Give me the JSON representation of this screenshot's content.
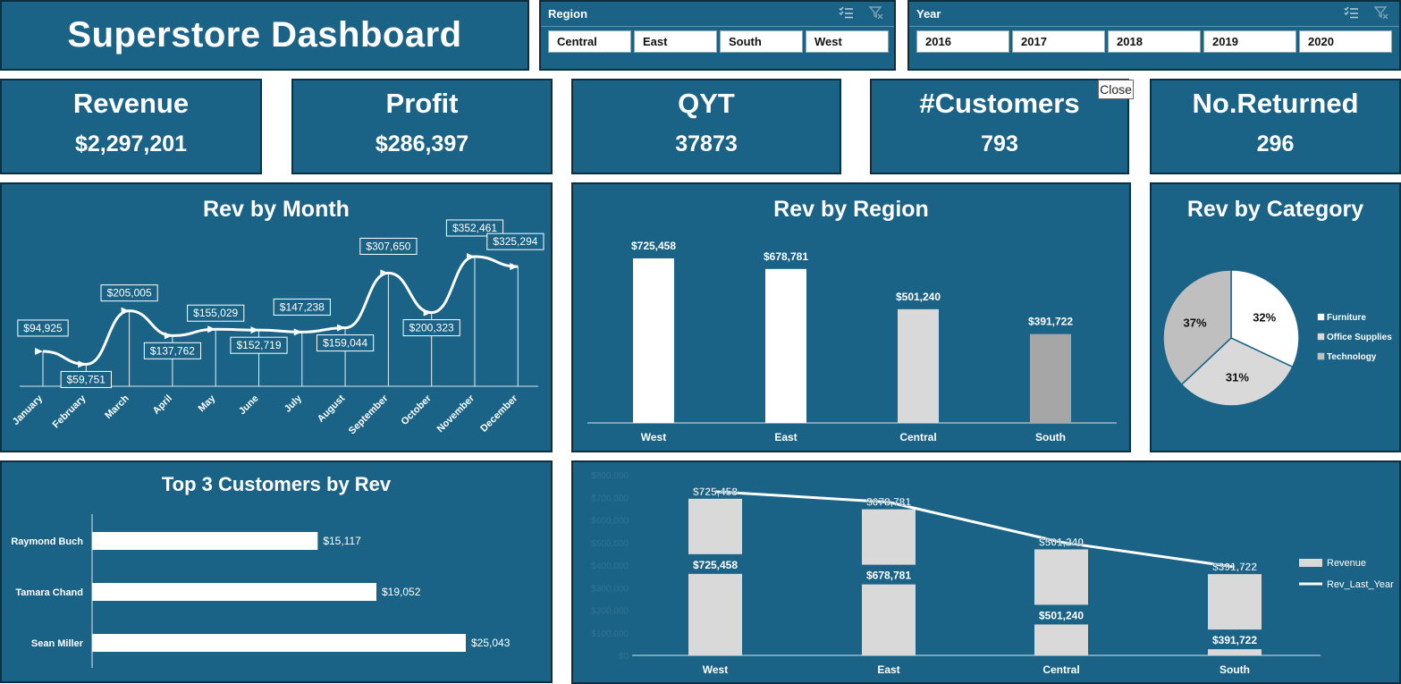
{
  "dashboard": {
    "title": "Superstore Dashboard"
  },
  "region_slicer": {
    "header": "Region",
    "options": [
      "Central",
      "East",
      "South",
      "West"
    ]
  },
  "year_slicer": {
    "header": "Year",
    "options": [
      "2016",
      "2017",
      "2018",
      "2019",
      "2020"
    ]
  },
  "kpis": [
    {
      "label": "Revenue",
      "value": "$2,297,201"
    },
    {
      "label": "Profit",
      "value": "$286,397"
    },
    {
      "label": "QYT",
      "value": "37873"
    },
    {
      "label": "#Customers",
      "value": "793"
    },
    {
      "label": "No.Returned",
      "value": "296"
    }
  ],
  "tooltip": {
    "text": "Close"
  },
  "colors": {
    "panel": "#1a6386",
    "border": "#0d2f40",
    "bar_white": "#ffffff",
    "bar_light": "#d9d9d9",
    "bar_gray": "#a6a6a6"
  },
  "chart_data": [
    {
      "id": "rev_by_month",
      "type": "line",
      "title": "Rev by Month",
      "categories": [
        "January",
        "February",
        "March",
        "April",
        "May",
        "June",
        "July",
        "August",
        "September",
        "October",
        "November",
        "December"
      ],
      "values": [
        94925,
        59751,
        205005,
        137762,
        155029,
        152719,
        147238,
        159044,
        307650,
        200323,
        352461,
        325294
      ],
      "labels": [
        "$94,925",
        "$59,751",
        "$205,005",
        "$137,762",
        "$155,029",
        "$152,719",
        "$147,238",
        "$159,044",
        "$307,650",
        "$200,323",
        "$352,461",
        "$325,294"
      ]
    },
    {
      "id": "rev_by_region",
      "type": "bar",
      "title": "Rev by Region",
      "categories": [
        "West",
        "East",
        "Central",
        "South"
      ],
      "values": [
        725458,
        678781,
        501240,
        391722
      ],
      "labels": [
        "$725,458",
        "$678,781",
        "$501,240",
        "$391,722"
      ]
    },
    {
      "id": "rev_by_category",
      "type": "pie",
      "title": "Rev by Category",
      "categories": [
        "Furniture",
        "Office Supplies",
        "Technology"
      ],
      "values": [
        32,
        31,
        37
      ],
      "labels": [
        "32%",
        "31%",
        "37%"
      ],
      "legend": "right"
    },
    {
      "id": "top_customers",
      "type": "bar",
      "orientation": "horizontal",
      "title": "Top 3 Customers by Rev",
      "categories": [
        "Raymond Buch",
        "Tamara Chand",
        "Sean Miller"
      ],
      "values": [
        15117,
        19052,
        25043
      ],
      "labels": [
        "$15,117",
        "$19,052",
        "$25,043"
      ]
    },
    {
      "id": "rev_vs_last_year",
      "type": "bar",
      "categories": [
        "West",
        "East",
        "Central",
        "South"
      ],
      "ylim": [
        0,
        800000
      ],
      "yticks": [
        "$0",
        "$100,000",
        "$200,000",
        "$300,000",
        "$400,000",
        "$500,000",
        "$600,000",
        "$700,000",
        "$800,000"
      ],
      "series": [
        {
          "name": "Revenue",
          "type": "bar",
          "values": [
            725458,
            678781,
            501240,
            391722
          ],
          "labels": [
            "$725,458",
            "$678,781",
            "$501,240",
            "$391,722"
          ]
        },
        {
          "name": "Rev_Last_Year",
          "type": "line",
          "values": [
            725458,
            678781,
            501240,
            391722
          ],
          "labels": [
            "$725,458",
            "$678,781",
            "$501,240",
            "$391,722"
          ]
        }
      ],
      "legend": "right"
    }
  ]
}
